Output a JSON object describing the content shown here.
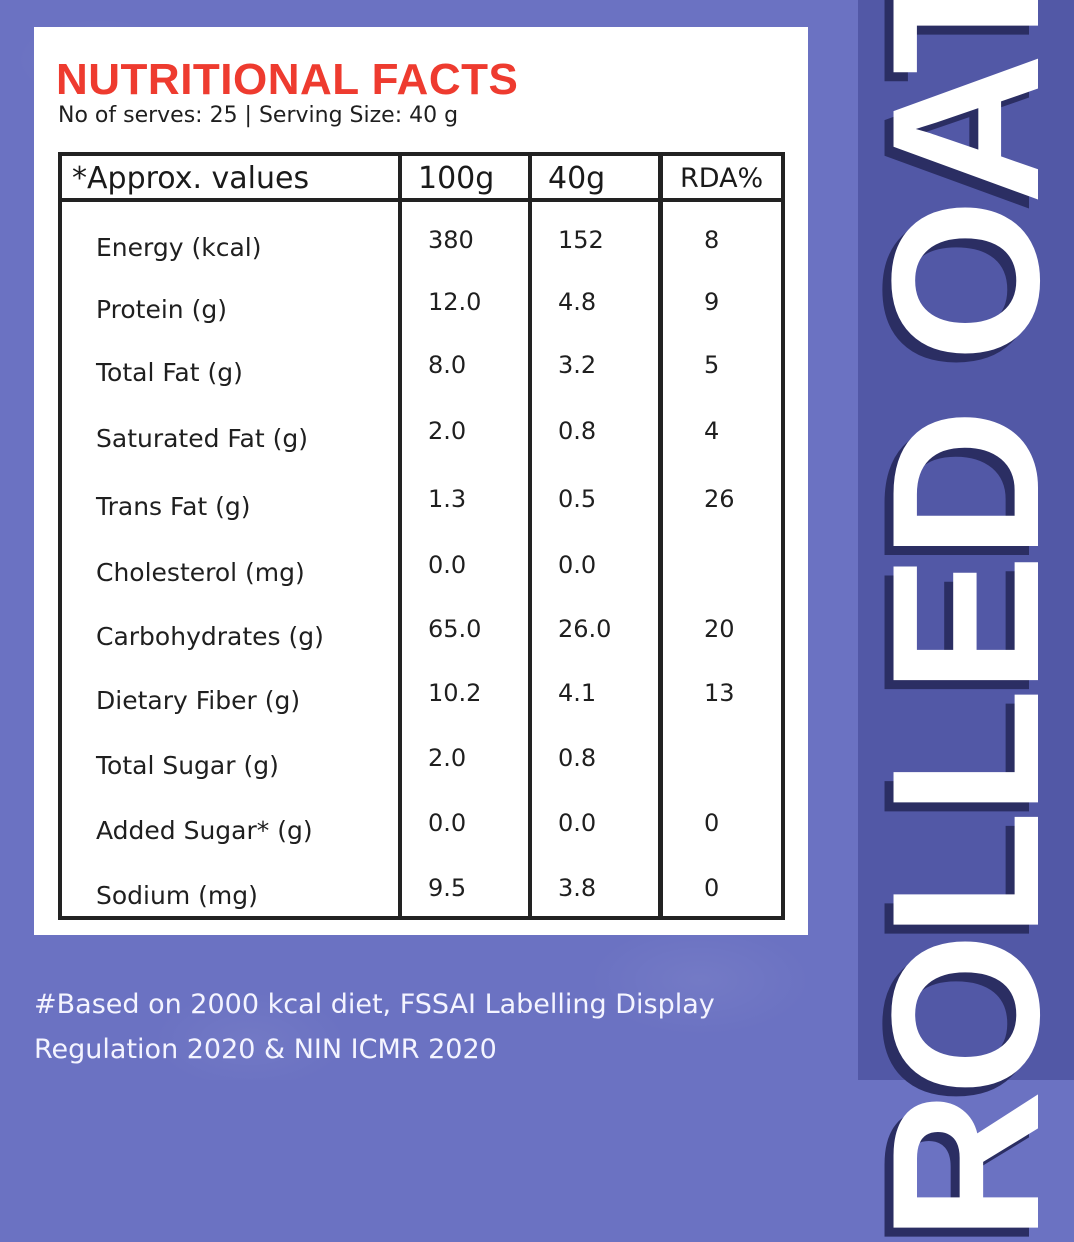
{
  "card": {
    "title": "NUTRITIONAL FACTS",
    "subtitle": "No of serves: 25 | Serving Size: 40 g"
  },
  "table": {
    "headers": [
      "*Approx. values",
      "100g",
      "40g",
      "RDA%"
    ],
    "rows": [
      {
        "label": "Energy (kcal)",
        "v100": "380",
        "v40": "152",
        "rda": "8"
      },
      {
        "label": "Protein (g)",
        "v100": "12.0",
        "v40": "4.8",
        "rda": "9"
      },
      {
        "label": "Total Fat (g)",
        "v100": "8.0",
        "v40": "3.2",
        "rda": "5"
      },
      {
        "label": "Saturated Fat (g)",
        "v100": "2.0",
        "v40": "0.8",
        "rda": "4"
      },
      {
        "label": "Trans Fat (g)",
        "v100": "1.3",
        "v40": "0.5",
        "rda": "26"
      },
      {
        "label": "Cholesterol (mg)",
        "v100": "0.0",
        "v40": "0.0",
        "rda": ""
      },
      {
        "label": "Carbohydrates (g)",
        "v100": "65.0",
        "v40": "26.0",
        "rda": "20"
      },
      {
        "label": "Dietary Fiber (g)",
        "v100": "10.2",
        "v40": "4.1",
        "rda": "13"
      },
      {
        "label": "Total Sugar (g)",
        "v100": "2.0",
        "v40": "0.8",
        "rda": ""
      },
      {
        "label": "Added Sugar* (g)",
        "v100": "0.0",
        "v40": "0.0",
        "rda": "0"
      },
      {
        "label": "Sodium (mg)",
        "v100": "9.5",
        "v40": "3.8",
        "rda": "0"
      }
    ]
  },
  "footer": {
    "line1": "#Based on 2000 kcal diet, FSSAI Labelling Display",
    "line2": "Regulation 2020 & NIN ICMR 2020"
  },
  "side_banner": {
    "text": "ROLLED OATS"
  },
  "colors": {
    "background": "#6b72c2",
    "side_panel": "#5258a6",
    "title_red": "#ee3b2f",
    "banner_shadow": "#2b2e63"
  }
}
